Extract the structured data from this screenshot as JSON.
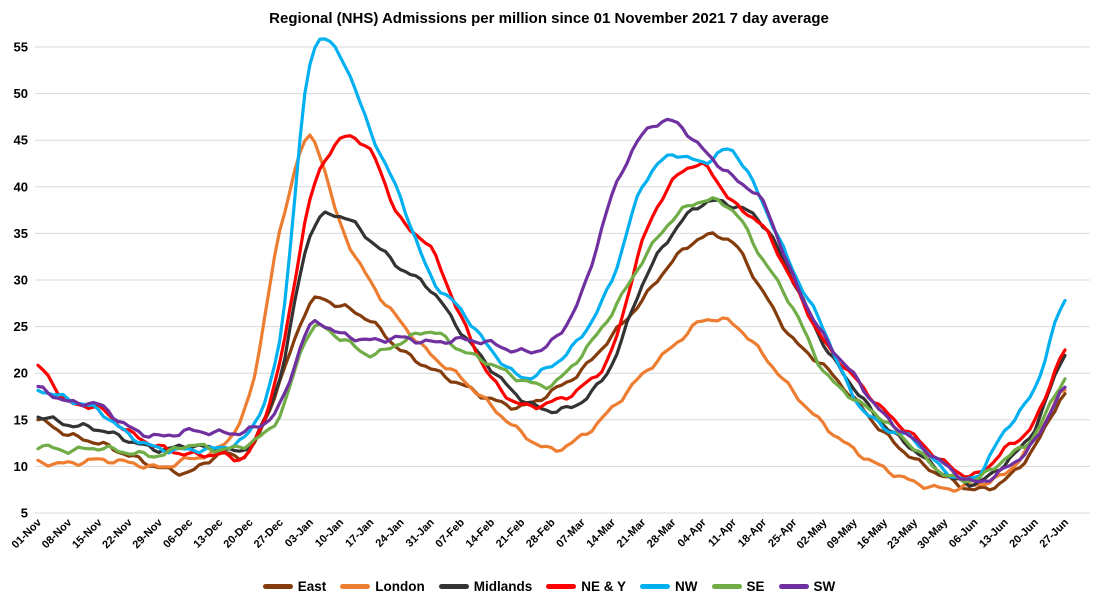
{
  "title": "Regional (NHS) Admissions per million since 01 November 2021 7 day average",
  "chart_data": {
    "type": "line",
    "title": "Regional (NHS) Admissions per million since 01 November 2021 7 day average",
    "xlabel": "",
    "ylabel": "",
    "ylim": [
      5,
      55
    ],
    "y_ticks": [
      5,
      10,
      15,
      20,
      25,
      30,
      35,
      40,
      45,
      50,
      55
    ],
    "grid": "horizontal",
    "legend_position": "bottom",
    "x_tick_rotation": -45,
    "categories": [
      "01-Nov",
      "08-Nov",
      "15-Nov",
      "22-Nov",
      "29-Nov",
      "06-Dec",
      "13-Dec",
      "20-Dec",
      "27-Dec",
      "03-Jan",
      "10-Jan",
      "17-Jan",
      "24-Jan",
      "31-Jan",
      "07-Feb",
      "14-Feb",
      "21-Feb",
      "28-Feb",
      "07-Mar",
      "14-Mar",
      "21-Mar",
      "28-Mar",
      "04-Apr",
      "11-Apr",
      "18-Apr",
      "25-Apr",
      "02-May",
      "09-May",
      "16-May",
      "23-May",
      "30-May",
      "06-Jun",
      "13-Jun",
      "20-Jun",
      "27-Jun"
    ],
    "series": [
      {
        "name": "East",
        "color": "#843C0C",
        "values": [
          15.0,
          13.4,
          12.5,
          11.2,
          9.9,
          9.4,
          11.3,
          11.6,
          19.0,
          27.4,
          27.2,
          25.6,
          22.5,
          20.5,
          18.8,
          17.2,
          16.4,
          18.0,
          20.3,
          24.0,
          27.8,
          32.0,
          34.6,
          34.0,
          28.7,
          23.6,
          20.8,
          17.3,
          13.6,
          10.8,
          8.9,
          7.5,
          8.5,
          12.1,
          17.8
        ]
      },
      {
        "name": "London",
        "color": "#ED7D31",
        "values": [
          10.4,
          10.3,
          10.7,
          10.4,
          9.9,
          10.8,
          12.0,
          17.5,
          35.0,
          45.3,
          36.0,
          29.8,
          25.5,
          22.0,
          19.5,
          16.5,
          13.6,
          11.8,
          13.2,
          16.2,
          19.8,
          22.8,
          25.6,
          25.3,
          22.0,
          18.0,
          14.5,
          11.8,
          9.8,
          8.3,
          7.6,
          8.0,
          9.2,
          12.9,
          18.2
        ]
      },
      {
        "name": "Midlands",
        "color": "#333333",
        "values": [
          15.4,
          14.5,
          14.0,
          12.8,
          11.8,
          12.2,
          11.9,
          12.2,
          19.5,
          34.8,
          36.9,
          34.3,
          31.3,
          29.0,
          24.5,
          20.5,
          17.3,
          16.0,
          17.0,
          21.0,
          29.5,
          35.0,
          38.2,
          38.0,
          36.0,
          30.0,
          23.2,
          18.5,
          14.5,
          11.8,
          9.2,
          8.2,
          10.3,
          14.1,
          21.9
        ]
      },
      {
        "name": "NE & Y",
        "color": "#FF0000",
        "values": [
          20.7,
          16.9,
          16.3,
          13.7,
          12.1,
          11.3,
          11.3,
          11.6,
          21.0,
          38.5,
          45.0,
          43.8,
          36.5,
          33.4,
          26.0,
          19.5,
          16.6,
          16.9,
          18.5,
          22.4,
          34.0,
          40.5,
          42.3,
          38.3,
          35.7,
          29.7,
          23.5,
          19.6,
          16.0,
          13.2,
          10.4,
          9.0,
          11.8,
          14.8,
          22.5
        ]
      },
      {
        "name": "NW",
        "color": "#00B0F0",
        "values": [
          18.2,
          17.2,
          16.0,
          13.4,
          11.9,
          11.8,
          12.0,
          13.8,
          23.5,
          53.2,
          54.0,
          46.0,
          38.8,
          30.4,
          26.8,
          22.5,
          19.6,
          20.8,
          24.0,
          30.0,
          40.0,
          43.4,
          42.6,
          43.8,
          38.2,
          31.0,
          24.8,
          17.5,
          14.2,
          12.9,
          9.6,
          8.8,
          13.8,
          18.4,
          27.8
        ]
      },
      {
        "name": "SE",
        "color": "#70AD47",
        "values": [
          12.2,
          11.7,
          12.0,
          11.5,
          11.2,
          12.3,
          11.8,
          12.5,
          15.5,
          24.5,
          23.8,
          22.0,
          23.3,
          24.5,
          22.5,
          21.0,
          19.3,
          18.8,
          22.0,
          26.5,
          32.0,
          36.5,
          38.5,
          37.5,
          32.2,
          27.0,
          20.3,
          17.3,
          15.0,
          12.0,
          9.2,
          8.6,
          10.8,
          13.4,
          19.4
        ]
      },
      {
        "name": "SW",
        "color": "#7030A0",
        "values": [
          18.4,
          16.9,
          16.6,
          14.2,
          13.2,
          13.8,
          13.6,
          13.9,
          16.5,
          25.0,
          24.2,
          23.5,
          23.8,
          23.3,
          23.6,
          23.2,
          22.3,
          23.3,
          28.5,
          39.0,
          45.5,
          47.0,
          44.0,
          41.0,
          38.3,
          30.3,
          24.0,
          19.8,
          15.5,
          12.8,
          10.2,
          8.3,
          9.7,
          12.7,
          18.5
        ]
      }
    ]
  }
}
